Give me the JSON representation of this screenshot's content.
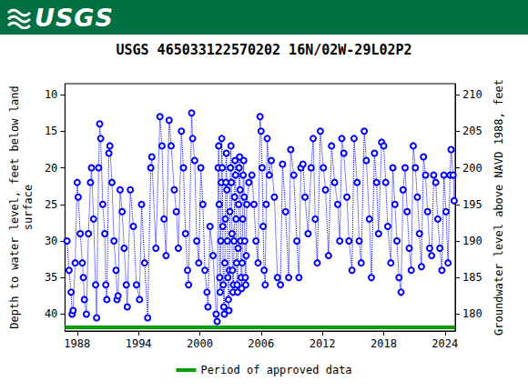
{
  "banner": "USGS",
  "chart_data": {
    "type": "line",
    "title": "USGS 465033122570202 16N/02W-29L02P2",
    "y_label": "Depth to water level, feet below land\nsurface",
    "y2_label": "Groundwater level above NAVD 1988, feet",
    "xlim": [
      1986.8,
      2025.0
    ],
    "xticks": [
      1988,
      1994,
      2000,
      2006,
      2012,
      2018,
      2024
    ],
    "ylim": [
      8.5,
      42.3
    ],
    "yticks": [
      10,
      15,
      20,
      25,
      30,
      35,
      40
    ],
    "y_inverted": true,
    "y2lim": [
      177.7,
      211.5
    ],
    "y2ticks": [
      180,
      185,
      190,
      195,
      200,
      205,
      210
    ],
    "grid": false,
    "legend": "bottom",
    "series": [
      {
        "color": "#0000ff",
        "marker": "open circle",
        "line_style": "dotted",
        "x": [
          1987.0,
          1987.2,
          1987.4,
          1987.5,
          1987.6,
          1987.8,
          1988.0,
          1988.1,
          1988.3,
          1988.5,
          1988.6,
          1988.7,
          1988.9,
          1989.1,
          1989.3,
          1989.4,
          1989.6,
          1989.8,
          1989.9,
          1990.1,
          1990.2,
          1990.3,
          1990.5,
          1990.7,
          1990.8,
          1990.9,
          1991.1,
          1991.2,
          1991.4,
          1991.6,
          1991.8,
          1991.9,
          1992.0,
          1992.2,
          1992.4,
          1992.6,
          1992.8,
          1992.9,
          1993.2,
          1993.5,
          1993.8,
          1994.1,
          1994.3,
          1994.6,
          1994.9,
          1995.2,
          1995.3,
          1995.7,
          1996.1,
          1996.3,
          1996.5,
          1996.7,
          1997.0,
          1997.2,
          1997.5,
          1997.7,
          1997.9,
          1998.2,
          1998.4,
          1998.6,
          1998.8,
          1998.9,
          1999.2,
          1999.3,
          1999.5,
          1999.7,
          1999.9,
          2000.1,
          2000.3,
          2000.5,
          2000.7,
          2000.8,
          2001.0,
          2001.3,
          2001.6,
          2001.7,
          2001.8,
          2001.85,
          2001.9,
          2001.95,
          2002.0,
          2002.05,
          2002.1,
          2002.15,
          2002.2,
          2002.25,
          2002.3,
          2002.35,
          2002.4,
          2002.45,
          2002.5,
          2002.55,
          2002.6,
          2002.65,
          2002.7,
          2002.75,
          2002.8,
          2002.85,
          2002.9,
          2002.95,
          2003.0,
          2003.05,
          2003.1,
          2003.15,
          2003.2,
          2003.25,
          2003.3,
          2003.35,
          2003.4,
          2003.45,
          2003.5,
          2003.55,
          2003.6,
          2003.65,
          2003.7,
          2003.75,
          2003.8,
          2003.85,
          2003.9,
          2003.95,
          2004.0,
          2004.05,
          2004.1,
          2004.15,
          2004.2,
          2004.25,
          2004.3,
          2004.35,
          2004.4,
          2004.45,
          2004.5,
          2004.55,
          2004.6,
          2004.8,
          2005.1,
          2005.3,
          2005.5,
          2005.7,
          2005.9,
          2006.0,
          2006.1,
          2006.2,
          2006.3,
          2006.4,
          2006.5,
          2006.6,
          2006.8,
          2007.0,
          2007.3,
          2007.6,
          2007.9,
          2008.1,
          2008.4,
          2008.7,
          2008.9,
          2009.2,
          2009.5,
          2009.7,
          2009.9,
          2010.1,
          2010.3,
          2010.6,
          2010.9,
          2011.1,
          2011.3,
          2011.5,
          2011.8,
          2012.1,
          2012.3,
          2012.6,
          2012.9,
          2013.2,
          2013.5,
          2013.7,
          2013.9,
          2014.1,
          2014.4,
          2014.6,
          2014.9,
          2015.1,
          2015.4,
          2015.6,
          2015.8,
          2016.1,
          2016.3,
          2016.6,
          2016.8,
          2017.1,
          2017.3,
          2017.5,
          2017.8,
          2018.0,
          2018.2,
          2018.4,
          2018.7,
          2018.9,
          2019.1,
          2019.3,
          2019.5,
          2019.7,
          2019.9,
          2020.1,
          2020.3,
          2020.5,
          2020.7,
          2020.9,
          2021.1,
          2021.3,
          2021.5,
          2021.7,
          2021.9,
          2022.1,
          2022.3,
          2022.5,
          2022.7,
          2022.9,
          2023.1,
          2023.3,
          2023.5,
          2023.7,
          2023.9,
          2024.1,
          2024.3,
          2024.5,
          2024.6,
          2024.8,
          2024.9
        ],
        "values": [
          30,
          34,
          37,
          40,
          39.5,
          33,
          22,
          24,
          29,
          33,
          35,
          38,
          40,
          29,
          22,
          20,
          27,
          36,
          40.5,
          20,
          14,
          16,
          25,
          29,
          36,
          38,
          18,
          17,
          22,
          30,
          34,
          38,
          37.5,
          23,
          26,
          31,
          36,
          39,
          23,
          28,
          36,
          38,
          25,
          33,
          40.5,
          20,
          18.5,
          31,
          13,
          17,
          27,
          32,
          13.5,
          17,
          23,
          26,
          31,
          15,
          20,
          29,
          34,
          36,
          12.5,
          16,
          19,
          30,
          33,
          20,
          25,
          34,
          37,
          39,
          28,
          32,
          40,
          41,
          20,
          17,
          25,
          35,
          37,
          30,
          22,
          16,
          20,
          28,
          36,
          39,
          40,
          33,
          27,
          22,
          18,
          23,
          30,
          35,
          38,
          39.5,
          34,
          26,
          20,
          17,
          22,
          29,
          34,
          37,
          36,
          30,
          24,
          19,
          21,
          27,
          33,
          36,
          37,
          31,
          25,
          20,
          18.5,
          23,
          30,
          35,
          36.5,
          33,
          27,
          21,
          19,
          24,
          30,
          35,
          36,
          32,
          25,
          22,
          21,
          25,
          30,
          33,
          13,
          15,
          20,
          28,
          34,
          36,
          25,
          16,
          21,
          19,
          24,
          35,
          36,
          19.5,
          26,
          35,
          17.5,
          21,
          30,
          35,
          20,
          19.5,
          24,
          29,
          20,
          16,
          27,
          33,
          15,
          20,
          23,
          32,
          17,
          22,
          25,
          30,
          16,
          18,
          24,
          30,
          34,
          16,
          22,
          30,
          33,
          15,
          19,
          27,
          35,
          18,
          22,
          29,
          16.5,
          17,
          22,
          28,
          33,
          20,
          25,
          30,
          35,
          37,
          23,
          20,
          26,
          31,
          34,
          17,
          20,
          24,
          29,
          33.5,
          18.5,
          21,
          26,
          31,
          32,
          21,
          22,
          27,
          31,
          34,
          21,
          26,
          33,
          21,
          17.5,
          21,
          24.5
        ]
      },
      {
        "name": "Period of approved data",
        "color": "#00a000",
        "line_style": "solid",
        "x": [
          1986.8,
          2025.0
        ],
        "values": [
          41.8,
          41.8
        ]
      }
    ]
  }
}
